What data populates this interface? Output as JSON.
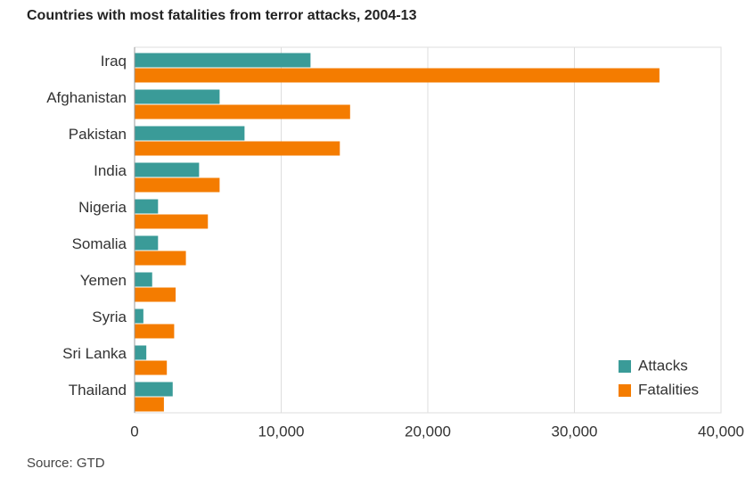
{
  "chart_data": {
    "type": "bar",
    "orientation": "horizontal",
    "title": "Countries with most fatalities from terror attacks, 2004-13",
    "source": "Source: GTD",
    "categories": [
      "Iraq",
      "Afghanistan",
      "Pakistan",
      "India",
      "Nigeria",
      "Somalia",
      "Yemen",
      "Syria",
      "Sri Lanka",
      "Thailand"
    ],
    "series": [
      {
        "name": "Attacks",
        "color": "#3a9b98",
        "values": [
          12000,
          5800,
          7500,
          4400,
          1600,
          1600,
          1200,
          600,
          800,
          2600
        ]
      },
      {
        "name": "Fatalities",
        "color": "#f47c00",
        "values": [
          35800,
          14700,
          14000,
          5800,
          5000,
          3500,
          2800,
          2700,
          2200,
          2000
        ]
      }
    ],
    "xlim": [
      0,
      40000
    ],
    "xticks": [
      0,
      {
        "value": 10000,
        "label": "10,000"
      },
      {
        "value": 20000,
        "label": "20,000"
      },
      {
        "value": 30000,
        "label": "30,000"
      },
      {
        "value": 40000,
        "label": "40,000"
      }
    ],
    "grid": true,
    "legend": "lower right"
  }
}
